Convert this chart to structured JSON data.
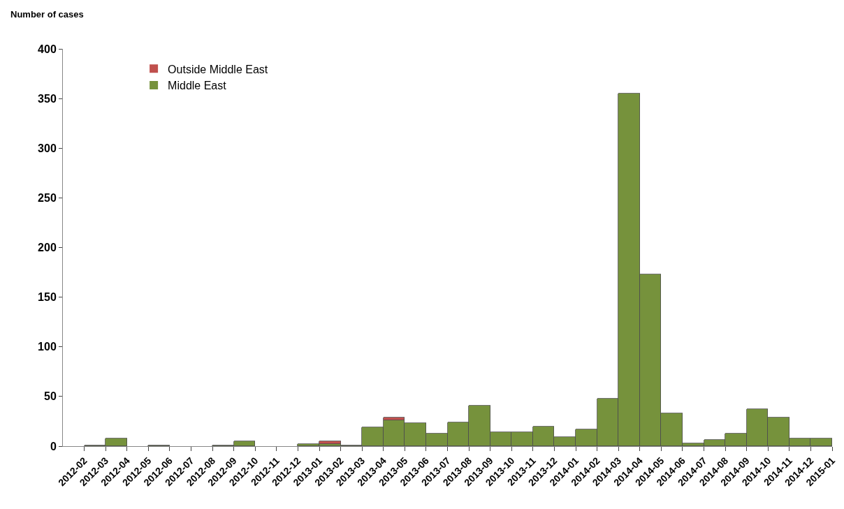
{
  "chart_data": {
    "type": "bar",
    "stacked": true,
    "ylabel": "Number of cases",
    "categories": [
      "2012-02",
      "2012-03",
      "2012-04",
      "2012-05",
      "2012-06",
      "2012-07",
      "2012-08",
      "2012-09",
      "2012-10",
      "2012-11",
      "2012-12",
      "2013-01",
      "2013-02",
      "2013-03",
      "2013-04",
      "2013-05",
      "2013-06",
      "2013-07",
      "2013-08",
      "2013-09",
      "2013-10",
      "2013-11",
      "2013-12",
      "2014-01",
      "2014-02",
      "2014-03",
      "2014-04",
      "2014-05",
      "2014-06",
      "2014-07",
      "2014-08",
      "2014-09",
      "2014-10",
      "2014-11",
      "2014-12",
      "2015-01"
    ],
    "series": [
      {
        "name": "Middle East",
        "color": "#76923c",
        "values": [
          0,
          1,
          8,
          0,
          1,
          0,
          0,
          1,
          5,
          0,
          0,
          2,
          2,
          1,
          19,
          26,
          23,
          13,
          24,
          41,
          14,
          14,
          20,
          9,
          17,
          48,
          355,
          173,
          33,
          3,
          6,
          13,
          37,
          29,
          8,
          8
        ]
      },
      {
        "name": "Outside Middle East",
        "color": "#c0504d",
        "values": [
          0,
          0,
          0,
          0,
          0,
          0,
          0,
          0,
          0,
          0,
          0,
          0,
          3,
          0,
          0,
          3,
          0,
          0,
          0,
          0,
          0,
          0,
          0,
          0,
          0,
          0,
          0,
          0,
          0,
          0,
          0,
          0,
          0,
          0,
          0,
          0
        ]
      }
    ],
    "ylim": [
      0,
      400
    ],
    "yticks": [
      0,
      50,
      100,
      150,
      200,
      250,
      300,
      350,
      400
    ],
    "legend": "top left"
  }
}
